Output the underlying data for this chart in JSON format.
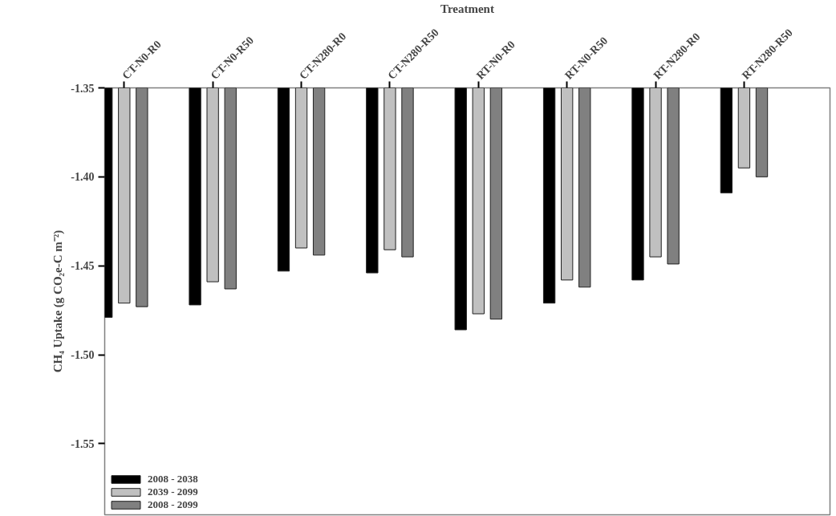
{
  "chart_data": {
    "type": "bar",
    "xlabel": "Treatment",
    "ylabel": "CH₄ Uptake (g CO₂e-C m⁻²)",
    "categories": [
      "CT-N0-R0",
      "CT-N0-R50",
      "CT-N280-R0",
      "CT-N280-R50",
      "RT-N0-R0",
      "RT-N0-R50",
      "RT-N280-R0",
      "RT-N280-R50"
    ],
    "series": [
      {
        "name": "2008 - 2038",
        "color": "#000000",
        "values": [
          -1.479,
          -1.472,
          -1.453,
          -1.454,
          -1.486,
          -1.471,
          -1.458,
          -1.409
        ]
      },
      {
        "name": "2039 - 2099",
        "color": "#c0c0c0",
        "values": [
          -1.471,
          -1.459,
          -1.44,
          -1.441,
          -1.477,
          -1.458,
          -1.445,
          -1.395
        ]
      },
      {
        "name": "2008 - 2099",
        "color": "#808080",
        "values": [
          -1.473,
          -1.463,
          -1.444,
          -1.445,
          -1.48,
          -1.462,
          -1.449,
          -1.4
        ]
      }
    ],
    "ylim": [
      -1.59,
      -1.35
    ],
    "yticks": [
      {
        "value": -1.55,
        "label": "-1.55"
      },
      {
        "value": -1.5,
        "label": "-1.50"
      },
      {
        "value": -1.45,
        "label": "-1.45"
      },
      {
        "value": -1.4,
        "label": "-1.40"
      },
      {
        "value": -1.35,
        "label": "-1.35"
      }
    ],
    "legend": "bottom left"
  }
}
